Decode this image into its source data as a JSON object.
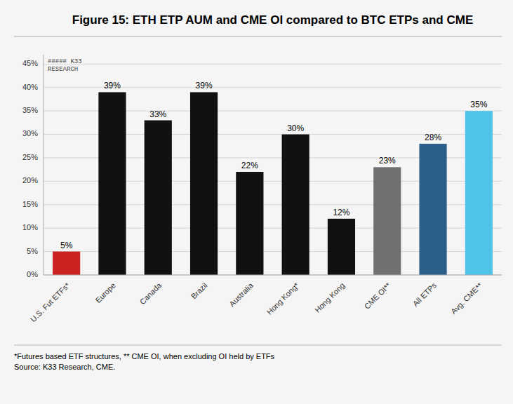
{
  "chart_data": {
    "type": "bar",
    "title": "Figure 15: ETH ETP AUM and CME OI compared to BTC ETPs and CME",
    "categories": [
      "U.S. Fut ETFs*",
      "Europe",
      "Canada",
      "Brazil",
      "Australia",
      "Hong Kong*",
      "Hong Kong",
      "CME OI**",
      "All ETPs",
      "Avg. CME**"
    ],
    "values": [
      5,
      39,
      33,
      39,
      22,
      30,
      12,
      23,
      28,
      35
    ],
    "value_labels": [
      "5%",
      "39%",
      "33%",
      "39%",
      "22%",
      "30%",
      "12%",
      "23%",
      "28%",
      "35%"
    ],
    "data_labels": true,
    "colors": [
      "#cc2222",
      "#111111",
      "#111111",
      "#111111",
      "#111111",
      "#111111",
      "#111111",
      "#707070",
      "#2c5f8a",
      "#4fc3e8"
    ],
    "ylim": [
      0,
      47
    ],
    "yticks": [
      {
        "value": 0,
        "label": "0%"
      },
      {
        "value": 5,
        "label": "5%"
      },
      {
        "value": 10,
        "label": "10%"
      },
      {
        "value": 15,
        "label": "15%"
      },
      {
        "value": 20,
        "label": "20%"
      },
      {
        "value": 25,
        "label": "25%"
      },
      {
        "value": 30,
        "label": "30%"
      },
      {
        "value": 35,
        "label": "35%"
      },
      {
        "value": 40,
        "label": "40%"
      },
      {
        "value": 45,
        "label": "45%"
      }
    ],
    "grid": true,
    "annotations": [
      "##### K33\nRESEARCH",
      "*Futures based ETF structures, ** CME OI, when excluding OI held by ETFs\nSource: K33 Research, CME."
    ]
  }
}
